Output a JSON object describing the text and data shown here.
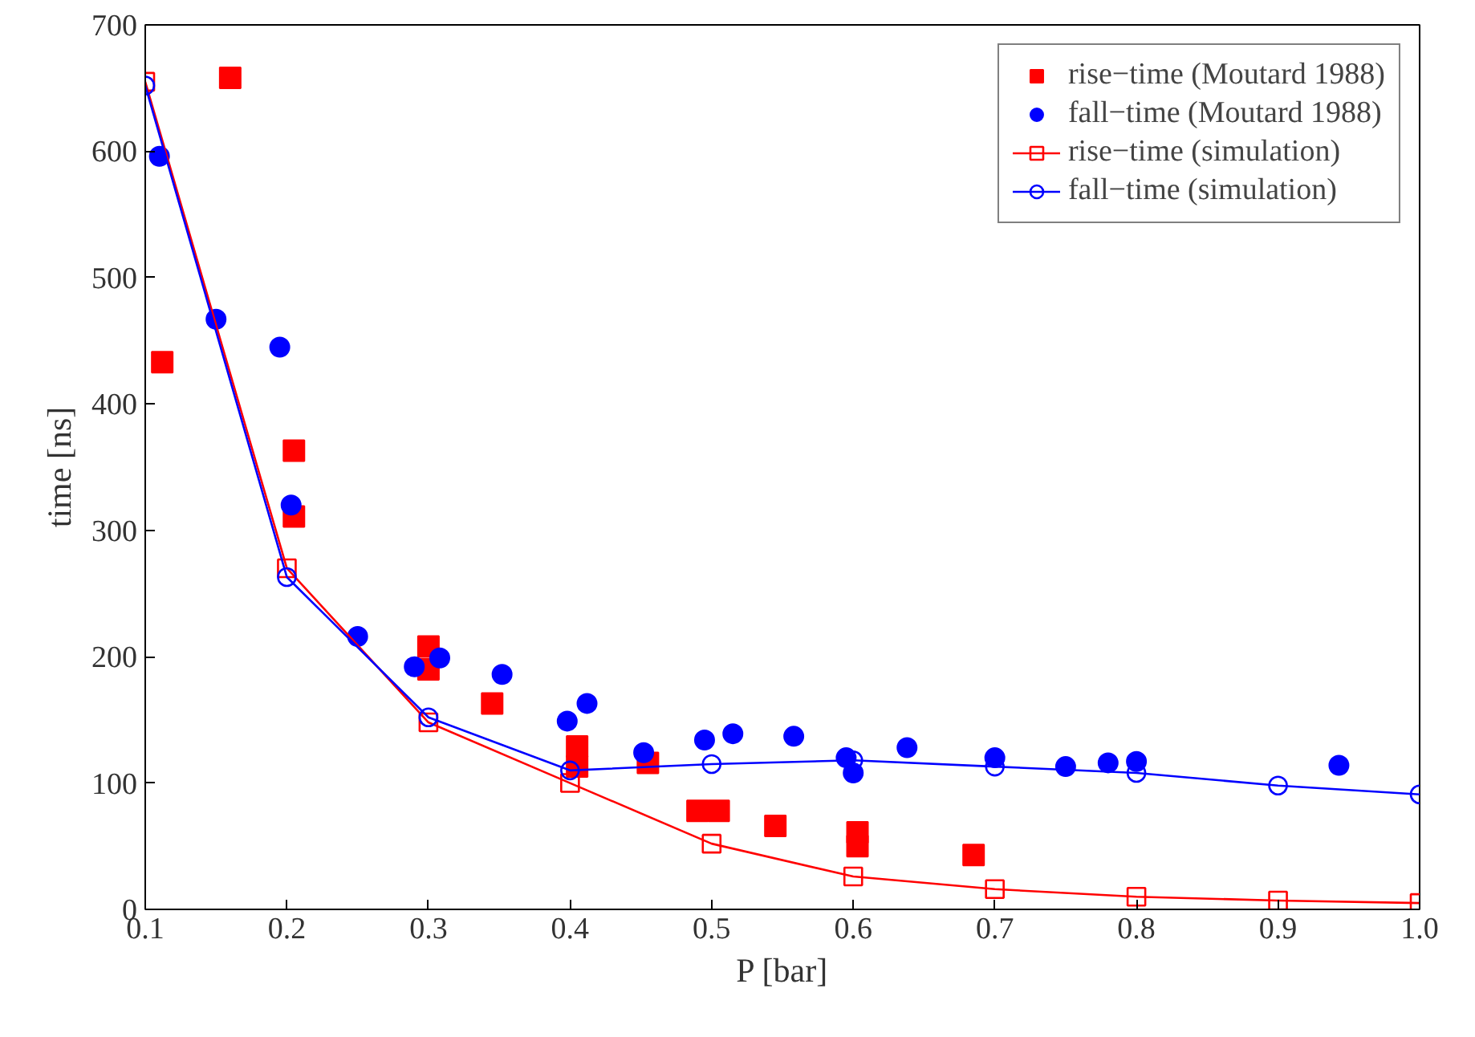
{
  "chart_data": {
    "type": "scatter",
    "xlabel": "P [bar]",
    "ylabel": "time [ns]",
    "xlim": [
      0.1,
      1.0
    ],
    "ylim": [
      0,
      700
    ],
    "xticks": [
      {
        "value": 0.1,
        "label": "0.1"
      },
      {
        "value": 0.2,
        "label": "0.2"
      },
      {
        "value": 0.3,
        "label": "0.3"
      },
      {
        "value": 0.4,
        "label": "0.4"
      },
      {
        "value": 0.5,
        "label": "0.5"
      },
      {
        "value": 0.6,
        "label": "0.6"
      },
      {
        "value": 0.7,
        "label": "0.7"
      },
      {
        "value": 0.8,
        "label": "0.8"
      },
      {
        "value": 0.9,
        "label": "0.9"
      },
      {
        "value": 1.0,
        "label": "1.0"
      }
    ],
    "yticks": [
      0,
      100,
      200,
      300,
      400,
      500,
      600,
      700
    ],
    "grid": false,
    "legend": "top right",
    "series": [
      {
        "name": "rise−time (Moutard 1988)",
        "marker": "square",
        "color": "#ff0000",
        "x": [
          0.112,
          0.16,
          0.205,
          0.205,
          0.3,
          0.3,
          0.345,
          0.405,
          0.405,
          0.455,
          0.49,
          0.505,
          0.545,
          0.603,
          0.603,
          0.685
        ],
        "values": [
          433,
          658,
          363,
          311,
          208,
          190,
          163,
          129,
          113,
          116,
          78,
          78,
          66,
          61,
          50,
          43
        ]
      },
      {
        "name": "fall−time (Moutard 1988)",
        "marker": "circle",
        "color": "#0000ff",
        "x": [
          0.11,
          0.15,
          0.195,
          0.203,
          0.25,
          0.29,
          0.308,
          0.352,
          0.398,
          0.412,
          0.452,
          0.495,
          0.515,
          0.558,
          0.595,
          0.6,
          0.638,
          0.7,
          0.75,
          0.78,
          0.8,
          0.943
        ],
        "values": [
          596,
          467,
          445,
          320,
          216,
          192,
          199,
          186,
          149,
          163,
          124,
          134,
          139,
          137,
          120,
          108,
          128,
          120,
          113,
          116,
          117,
          114
        ]
      },
      {
        "name": "rise−time (simulation)",
        "type": "line",
        "marker": "square",
        "line_style": "solid",
        "color": "#ff0000",
        "x": [
          0.1,
          0.2,
          0.3,
          0.4,
          0.5,
          0.6,
          0.7,
          0.8,
          0.9,
          1.0
        ],
        "values": [
          655,
          270,
          148,
          100,
          52,
          26,
          16,
          10,
          7,
          5
        ]
      },
      {
        "name": "fall−time (simulation)",
        "type": "line",
        "marker": "circle",
        "line_style": "solid",
        "color": "#0000ff",
        "x": [
          0.1,
          0.2,
          0.3,
          0.4,
          0.5,
          0.6,
          0.7,
          0.8,
          0.9,
          1.0
        ],
        "values": [
          652,
          263,
          152,
          110,
          115,
          118,
          113,
          108,
          98,
          91
        ]
      }
    ]
  }
}
